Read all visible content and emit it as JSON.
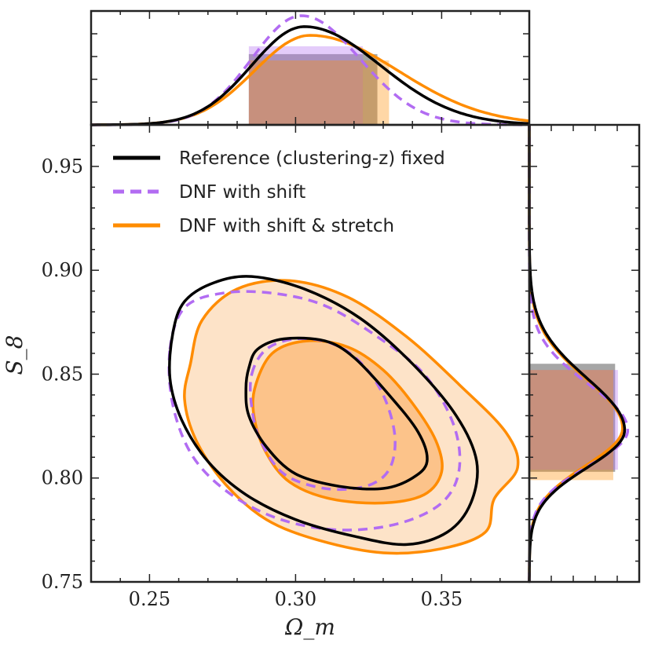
{
  "chart_data": {
    "type": "contour",
    "xlabel": "Ω_m",
    "ylabel": "S_8",
    "x_axis": {
      "min": 0.23,
      "max": 0.38,
      "ticks": [
        0.25,
        0.3,
        0.35
      ],
      "tick_labels": [
        "0.25",
        "0.30",
        "0.35"
      ]
    },
    "y_axis": {
      "min": 0.75,
      "max": 0.97,
      "ticks": [
        0.75,
        0.8,
        0.85,
        0.9,
        0.95
      ],
      "tick_labels": [
        "0.75",
        "0.80",
        "0.85",
        "0.90",
        "0.95"
      ]
    },
    "legend": {
      "placement": "upper-left",
      "entries": [
        {
          "label": "Reference (clustering-z) fixed",
          "color": "#000000",
          "style": "solid"
        },
        {
          "label": "DNF with shift",
          "color": "#b26cf2",
          "style": "dashed"
        },
        {
          "label": "DNF with shift & stretch",
          "color": "#ff8c00",
          "style": "solid"
        }
      ]
    },
    "series": [
      {
        "name": "Reference (clustering-z) fixed",
        "color": "#000000",
        "dash": "",
        "fill": false,
        "contour_68": [
          [
            0.284,
            0.853
          ],
          [
            0.287,
            0.862
          ],
          [
            0.296,
            0.867
          ],
          [
            0.31,
            0.866
          ],
          [
            0.32,
            0.858
          ],
          [
            0.332,
            0.84
          ],
          [
            0.342,
            0.822
          ],
          [
            0.345,
            0.808
          ],
          [
            0.34,
            0.8
          ],
          [
            0.33,
            0.795
          ],
          [
            0.315,
            0.796
          ],
          [
            0.3,
            0.802
          ],
          [
            0.29,
            0.815
          ],
          [
            0.284,
            0.83
          ],
          [
            0.283,
            0.843
          ]
        ],
        "contour_95": [
          [
            0.258,
            0.87
          ],
          [
            0.262,
            0.885
          ],
          [
            0.272,
            0.894
          ],
          [
            0.285,
            0.897
          ],
          [
            0.303,
            0.891
          ],
          [
            0.322,
            0.877
          ],
          [
            0.34,
            0.855
          ],
          [
            0.355,
            0.83
          ],
          [
            0.362,
            0.808
          ],
          [
            0.36,
            0.788
          ],
          [
            0.352,
            0.774
          ],
          [
            0.338,
            0.768
          ],
          [
            0.32,
            0.772
          ],
          [
            0.3,
            0.78
          ],
          [
            0.283,
            0.792
          ],
          [
            0.27,
            0.808
          ],
          [
            0.261,
            0.828
          ],
          [
            0.257,
            0.848
          ]
        ],
        "marginal_x": {
          "mode": 0.303,
          "peak": 0.9,
          "sigma_left": 0.018,
          "sigma_right": 0.026
        },
        "marginal_x_band": [
          0.284,
          0.328
        ],
        "marginal_y": {
          "mode": 0.823,
          "peak": 0.92,
          "sigma_up": 0.025,
          "sigma_down": 0.018
        },
        "marginal_y_band": [
          0.803,
          0.855
        ]
      },
      {
        "name": "DNF with shift",
        "color": "#b26cf2",
        "dash": "12,8",
        "fill": false,
        "contour_68": [
          [
            0.285,
            0.85
          ],
          [
            0.29,
            0.862
          ],
          [
            0.3,
            0.867
          ],
          [
            0.312,
            0.865
          ],
          [
            0.322,
            0.856
          ],
          [
            0.33,
            0.84
          ],
          [
            0.334,
            0.82
          ],
          [
            0.332,
            0.804
          ],
          [
            0.324,
            0.796
          ],
          [
            0.31,
            0.795
          ],
          [
            0.296,
            0.802
          ],
          [
            0.288,
            0.818
          ],
          [
            0.285,
            0.834
          ]
        ],
        "contour_95": [
          [
            0.257,
            0.862
          ],
          [
            0.262,
            0.882
          ],
          [
            0.275,
            0.889
          ],
          [
            0.292,
            0.889
          ],
          [
            0.31,
            0.883
          ],
          [
            0.328,
            0.868
          ],
          [
            0.344,
            0.85
          ],
          [
            0.354,
            0.826
          ],
          [
            0.356,
            0.804
          ],
          [
            0.35,
            0.788
          ],
          [
            0.335,
            0.778
          ],
          [
            0.315,
            0.775
          ],
          [
            0.295,
            0.78
          ],
          [
            0.278,
            0.792
          ],
          [
            0.265,
            0.81
          ],
          [
            0.258,
            0.835
          ]
        ],
        "marginal_x": {
          "mode": 0.302,
          "peak": 1.0,
          "sigma_left": 0.017,
          "sigma_right": 0.02
        },
        "marginal_x_band": [
          0.284,
          0.323
        ],
        "marginal_y": {
          "mode": 0.823,
          "peak": 0.95,
          "sigma_up": 0.022,
          "sigma_down": 0.017
        },
        "marginal_y_band": [
          0.804,
          0.852
        ]
      },
      {
        "name": "DNF with shift & stretch",
        "color": "#ff8c00",
        "dash": "",
        "fill": true,
        "fill_68_color": "#fcc38a",
        "fill_95_color": "#fde3c8",
        "contour_68": [
          [
            0.286,
            0.843
          ],
          [
            0.292,
            0.86
          ],
          [
            0.304,
            0.866
          ],
          [
            0.318,
            0.863
          ],
          [
            0.33,
            0.852
          ],
          [
            0.34,
            0.836
          ],
          [
            0.348,
            0.818
          ],
          [
            0.35,
            0.803
          ],
          [
            0.344,
            0.792
          ],
          [
            0.33,
            0.788
          ],
          [
            0.312,
            0.79
          ],
          [
            0.298,
            0.798
          ],
          [
            0.29,
            0.812
          ],
          [
            0.286,
            0.828
          ]
        ],
        "contour_95": [
          [
            0.264,
            0.855
          ],
          [
            0.268,
            0.876
          ],
          [
            0.28,
            0.891
          ],
          [
            0.298,
            0.895
          ],
          [
            0.318,
            0.887
          ],
          [
            0.338,
            0.868
          ],
          [
            0.356,
            0.845
          ],
          [
            0.372,
            0.822
          ],
          [
            0.376,
            0.805
          ],
          [
            0.368,
            0.79
          ],
          [
            0.365,
            0.774
          ],
          [
            0.35,
            0.766
          ],
          [
            0.33,
            0.764
          ],
          [
            0.308,
            0.77
          ],
          [
            0.29,
            0.78
          ],
          [
            0.276,
            0.797
          ],
          [
            0.266,
            0.818
          ],
          [
            0.262,
            0.838
          ]
        ],
        "marginal_x": {
          "mode": 0.305,
          "peak": 0.82,
          "sigma_left": 0.019,
          "sigma_right": 0.03
        },
        "marginal_x_band": [
          0.284,
          0.332
        ],
        "marginal_y": {
          "mode": 0.824,
          "peak": 0.9,
          "sigma_up": 0.024,
          "sigma_down": 0.018
        },
        "marginal_y_band": [
          0.799,
          0.852
        ]
      }
    ]
  }
}
